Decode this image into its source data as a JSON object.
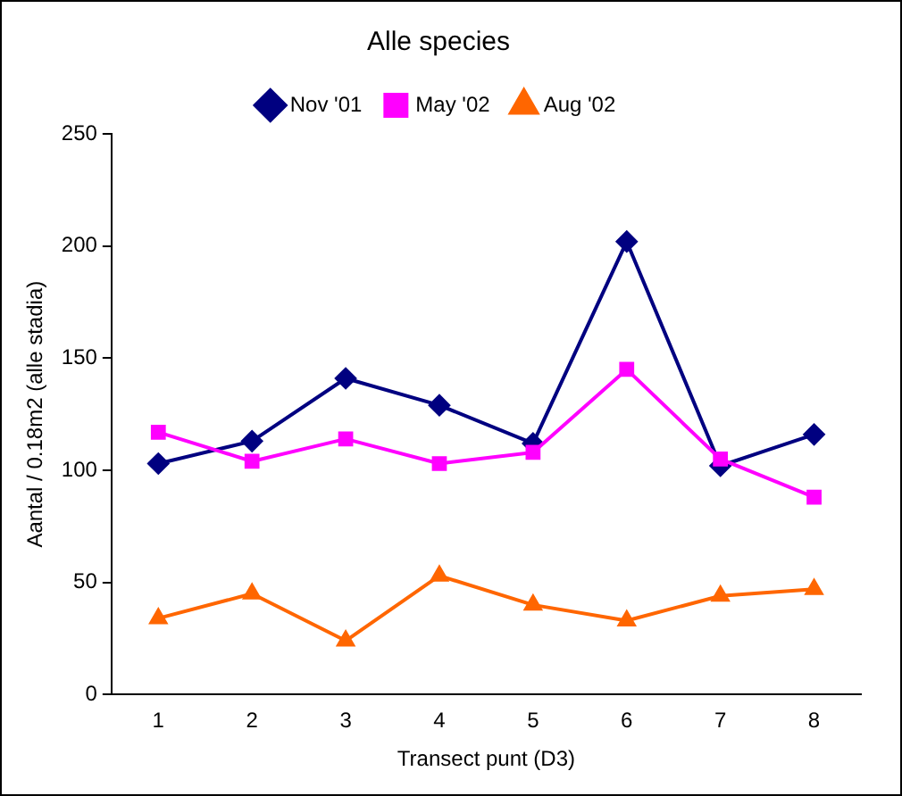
{
  "chart_data": {
    "type": "line",
    "title": "Alle species",
    "xlabel": "Transect punt (D3)",
    "ylabel": "Aantal / 0.18m2 (alle stadia)",
    "categories": [
      "1",
      "2",
      "3",
      "4",
      "5",
      "6",
      "7",
      "8"
    ],
    "series": [
      {
        "name": "Nov '01",
        "color": "#000080",
        "marker": "diamond",
        "values": [
          103,
          113,
          141,
          129,
          112,
          202,
          102,
          116
        ]
      },
      {
        "name": "May '02",
        "color": "#ff00ff",
        "marker": "square",
        "values": [
          117,
          104,
          114,
          103,
          108,
          145,
          105,
          88
        ]
      },
      {
        "name": "Aug '02",
        "color": "#ff6600",
        "marker": "triangle",
        "values": [
          34,
          45,
          24,
          53,
          40,
          33,
          44,
          47
        ]
      }
    ],
    "ylim": [
      0,
      250
    ],
    "yticks": [
      0,
      50,
      100,
      150,
      200,
      250
    ],
    "grid": false,
    "legend": "top",
    "line_style": "solid"
  }
}
